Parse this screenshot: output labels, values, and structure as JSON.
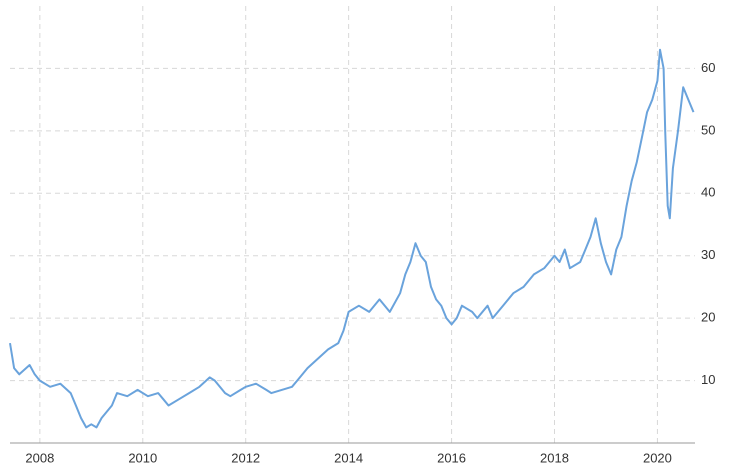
{
  "chart_data": {
    "type": "line",
    "x": [
      2007.42,
      2007.5,
      2007.6,
      2007.8,
      2007.9,
      2008.0,
      2008.2,
      2008.4,
      2008.6,
      2008.7,
      2008.8,
      2008.9,
      2009.0,
      2009.1,
      2009.2,
      2009.4,
      2009.5,
      2009.7,
      2009.9,
      2010.1,
      2010.3,
      2010.4,
      2010.5,
      2010.7,
      2010.9,
      2011.1,
      2011.3,
      2011.4,
      2011.6,
      2011.7,
      2011.9,
      2012.0,
      2012.2,
      2012.4,
      2012.5,
      2012.7,
      2012.9,
      2013.0,
      2013.2,
      2013.4,
      2013.6,
      2013.8,
      2013.9,
      2014.0,
      2014.2,
      2014.4,
      2014.6,
      2014.8,
      2015.0,
      2015.1,
      2015.2,
      2015.3,
      2015.4,
      2015.5,
      2015.6,
      2015.7,
      2015.8,
      2015.9,
      2016.0,
      2016.1,
      2016.2,
      2016.4,
      2016.5,
      2016.7,
      2016.8,
      2016.9,
      2017.0,
      2017.2,
      2017.4,
      2017.6,
      2017.8,
      2018.0,
      2018.1,
      2018.2,
      2018.3,
      2018.5,
      2018.6,
      2018.7,
      2018.8,
      2018.9,
      2019.0,
      2019.1,
      2019.2,
      2019.3,
      2019.4,
      2019.5,
      2019.6,
      2019.7,
      2019.8,
      2019.9,
      2020.0,
      2020.05,
      2020.12,
      2020.15,
      2020.2,
      2020.24,
      2020.3,
      2020.4,
      2020.5,
      2020.6,
      2020.7
    ],
    "series": [
      {
        "color": "#6aa3dc",
        "values": [
          16,
          12,
          11,
          12.5,
          11,
          10,
          9,
          9.5,
          8,
          6,
          4,
          2.5,
          3,
          2.5,
          4,
          6,
          8,
          7.5,
          8.5,
          7.5,
          8,
          7,
          6,
          7,
          8,
          9,
          10.5,
          10,
          8,
          7.5,
          8.5,
          9,
          9.5,
          8.5,
          8,
          8.5,
          9,
          10,
          12,
          13.5,
          15,
          16,
          18,
          21,
          22,
          21,
          23,
          21,
          24,
          27,
          29,
          32,
          30,
          29,
          25,
          23,
          22,
          20,
          19,
          20,
          22,
          21,
          20,
          22,
          20,
          21,
          22,
          24,
          25,
          27,
          28,
          30,
          29,
          31,
          28,
          29,
          31,
          33,
          36,
          32,
          29,
          27,
          31,
          33,
          38,
          42,
          45,
          49,
          53,
          55,
          58,
          63,
          60,
          50,
          38,
          36,
          44,
          50,
          57,
          55,
          53
        ]
      }
    ],
    "xlim": [
      2007.42,
      2020.73
    ],
    "ylim": [
      0,
      70
    ],
    "xticks": [
      2008,
      2010,
      2012,
      2014,
      2016,
      2018,
      2020
    ],
    "yticks": [
      10,
      20,
      30,
      40,
      50,
      60
    ],
    "grid": true
  }
}
